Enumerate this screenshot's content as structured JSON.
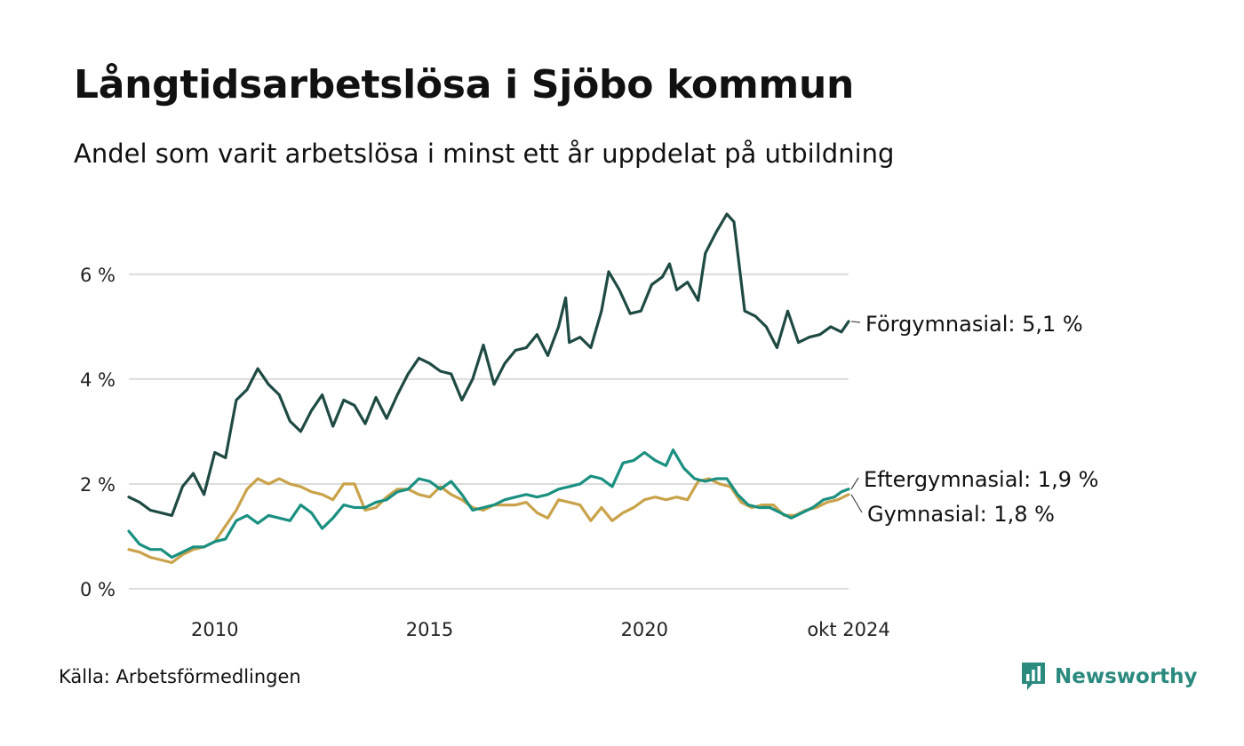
{
  "title": "Långtidsarbetslösa i Sjöbo kommun",
  "subtitle": "Andel som varit arbetslösa i minst ett år uppdelat på utbildning",
  "source": "Källa: Arbetsförmedlingen",
  "brand": {
    "name": "Newsworthy",
    "icon": "bar-chart-logo-icon",
    "color": "#2b8a7e"
  },
  "chart_data": {
    "type": "line",
    "title": "Långtidsarbetslösa i Sjöbo kommun",
    "x_range": [
      "2008-01",
      "2024-10"
    ],
    "ylim": [
      0,
      7.2
    ],
    "grid": "horizontal",
    "y_ticks": [
      {
        "value": 0,
        "label": "0 %"
      },
      {
        "value": 2,
        "label": "2 %"
      },
      {
        "value": 4,
        "label": "4 %"
      },
      {
        "value": 6,
        "label": "6 %"
      }
    ],
    "x_ticks": [
      {
        "date": "2010-01",
        "label": "2010"
      },
      {
        "date": "2015-01",
        "label": "2015"
      },
      {
        "date": "2020-01",
        "label": "2020"
      },
      {
        "date": "2024-10",
        "label": "okt 2024"
      }
    ],
    "series": [
      {
        "name": "Förgymnasial",
        "end_label": "Förgymnasial: 5,1 %",
        "color": "#1f4a44",
        "points": [
          [
            "2008-01",
            1.75
          ],
          [
            "2008-04",
            1.65
          ],
          [
            "2008-07",
            1.5
          ],
          [
            "2008-10",
            1.45
          ],
          [
            "2009-01",
            1.4
          ],
          [
            "2009-04",
            1.95
          ],
          [
            "2009-07",
            2.2
          ],
          [
            "2009-10",
            1.8
          ],
          [
            "2010-01",
            2.6
          ],
          [
            "2010-04",
            2.5
          ],
          [
            "2010-07",
            3.6
          ],
          [
            "2010-10",
            3.8
          ],
          [
            "2011-01",
            4.2
          ],
          [
            "2011-04",
            3.9
          ],
          [
            "2011-07",
            3.7
          ],
          [
            "2011-10",
            3.2
          ],
          [
            "2012-01",
            3.0
          ],
          [
            "2012-04",
            3.4
          ],
          [
            "2012-07",
            3.7
          ],
          [
            "2012-10",
            3.1
          ],
          [
            "2013-01",
            3.6
          ],
          [
            "2013-04",
            3.5
          ],
          [
            "2013-07",
            3.15
          ],
          [
            "2013-10",
            3.65
          ],
          [
            "2014-01",
            3.25
          ],
          [
            "2014-04",
            3.7
          ],
          [
            "2014-07",
            4.1
          ],
          [
            "2014-10",
            4.4
          ],
          [
            "2015-01",
            4.3
          ],
          [
            "2015-04",
            4.15
          ],
          [
            "2015-07",
            4.1
          ],
          [
            "2015-10",
            3.6
          ],
          [
            "2016-01",
            4.0
          ],
          [
            "2016-04",
            4.65
          ],
          [
            "2016-07",
            3.9
          ],
          [
            "2016-10",
            4.3
          ],
          [
            "2017-01",
            4.55
          ],
          [
            "2017-04",
            4.6
          ],
          [
            "2017-07",
            4.85
          ],
          [
            "2017-10",
            4.45
          ],
          [
            "2018-01",
            5.0
          ],
          [
            "2018-03",
            5.55
          ],
          [
            "2018-04",
            4.7
          ],
          [
            "2018-07",
            4.8
          ],
          [
            "2018-10",
            4.6
          ],
          [
            "2019-01",
            5.3
          ],
          [
            "2019-03",
            6.05
          ],
          [
            "2019-06",
            5.7
          ],
          [
            "2019-09",
            5.25
          ],
          [
            "2019-12",
            5.3
          ],
          [
            "2020-03",
            5.8
          ],
          [
            "2020-06",
            5.95
          ],
          [
            "2020-08",
            6.2
          ],
          [
            "2020-10",
            5.7
          ],
          [
            "2021-01",
            5.85
          ],
          [
            "2021-04",
            5.5
          ],
          [
            "2021-06",
            6.4
          ],
          [
            "2021-09",
            6.8
          ],
          [
            "2021-12",
            7.15
          ],
          [
            "2022-02",
            7.0
          ],
          [
            "2022-05",
            5.3
          ],
          [
            "2022-08",
            5.2
          ],
          [
            "2022-11",
            5.0
          ],
          [
            "2023-02",
            4.6
          ],
          [
            "2023-05",
            5.3
          ],
          [
            "2023-08",
            4.7
          ],
          [
            "2023-11",
            4.8
          ],
          [
            "2024-02",
            4.85
          ],
          [
            "2024-05",
            5.0
          ],
          [
            "2024-08",
            4.9
          ],
          [
            "2024-10",
            5.1
          ]
        ]
      },
      {
        "name": "Eftergymnasial",
        "end_label": "Eftergymnasial: 1,9 %",
        "color": "#1a9080",
        "points": [
          [
            "2008-01",
            1.1
          ],
          [
            "2008-04",
            0.85
          ],
          [
            "2008-07",
            0.75
          ],
          [
            "2008-10",
            0.75
          ],
          [
            "2009-01",
            0.6
          ],
          [
            "2009-04",
            0.7
          ],
          [
            "2009-07",
            0.8
          ],
          [
            "2009-10",
            0.8
          ],
          [
            "2010-01",
            0.9
          ],
          [
            "2010-04",
            0.95
          ],
          [
            "2010-07",
            1.3
          ],
          [
            "2010-10",
            1.4
          ],
          [
            "2011-01",
            1.25
          ],
          [
            "2011-04",
            1.4
          ],
          [
            "2011-07",
            1.35
          ],
          [
            "2011-10",
            1.3
          ],
          [
            "2012-01",
            1.6
          ],
          [
            "2012-04",
            1.45
          ],
          [
            "2012-07",
            1.15
          ],
          [
            "2012-10",
            1.35
          ],
          [
            "2013-01",
            1.6
          ],
          [
            "2013-04",
            1.55
          ],
          [
            "2013-07",
            1.55
          ],
          [
            "2013-10",
            1.65
          ],
          [
            "2014-01",
            1.7
          ],
          [
            "2014-04",
            1.85
          ],
          [
            "2014-07",
            1.9
          ],
          [
            "2014-10",
            2.1
          ],
          [
            "2015-01",
            2.05
          ],
          [
            "2015-04",
            1.9
          ],
          [
            "2015-07",
            2.05
          ],
          [
            "2015-10",
            1.8
          ],
          [
            "2016-01",
            1.5
          ],
          [
            "2016-04",
            1.55
          ],
          [
            "2016-07",
            1.6
          ],
          [
            "2016-10",
            1.7
          ],
          [
            "2017-01",
            1.75
          ],
          [
            "2017-04",
            1.8
          ],
          [
            "2017-07",
            1.75
          ],
          [
            "2017-10",
            1.8
          ],
          [
            "2018-01",
            1.9
          ],
          [
            "2018-04",
            1.95
          ],
          [
            "2018-07",
            2.0
          ],
          [
            "2018-10",
            2.15
          ],
          [
            "2019-01",
            2.1
          ],
          [
            "2019-04",
            1.95
          ],
          [
            "2019-07",
            2.4
          ],
          [
            "2019-10",
            2.45
          ],
          [
            "2020-01",
            2.6
          ],
          [
            "2020-04",
            2.45
          ],
          [
            "2020-07",
            2.35
          ],
          [
            "2020-09",
            2.65
          ],
          [
            "2020-12",
            2.3
          ],
          [
            "2021-03",
            2.1
          ],
          [
            "2021-06",
            2.05
          ],
          [
            "2021-09",
            2.1
          ],
          [
            "2021-12",
            2.1
          ],
          [
            "2022-03",
            1.8
          ],
          [
            "2022-06",
            1.6
          ],
          [
            "2022-09",
            1.55
          ],
          [
            "2022-12",
            1.55
          ],
          [
            "2023-03",
            1.45
          ],
          [
            "2023-06",
            1.35
          ],
          [
            "2023-09",
            1.45
          ],
          [
            "2023-12",
            1.55
          ],
          [
            "2024-03",
            1.7
          ],
          [
            "2024-06",
            1.75
          ],
          [
            "2024-08",
            1.85
          ],
          [
            "2024-10",
            1.9
          ]
        ]
      },
      {
        "name": "Gymnasial",
        "end_label": "Gymnasial: 1,8 %",
        "color": "#c9a24a",
        "points": [
          [
            "2008-01",
            0.75
          ],
          [
            "2008-04",
            0.7
          ],
          [
            "2008-07",
            0.6
          ],
          [
            "2008-10",
            0.55
          ],
          [
            "2009-01",
            0.5
          ],
          [
            "2009-04",
            0.65
          ],
          [
            "2009-07",
            0.75
          ],
          [
            "2009-10",
            0.8
          ],
          [
            "2010-01",
            0.9
          ],
          [
            "2010-04",
            1.2
          ],
          [
            "2010-07",
            1.5
          ],
          [
            "2010-10",
            1.9
          ],
          [
            "2011-01",
            2.1
          ],
          [
            "2011-04",
            2.0
          ],
          [
            "2011-07",
            2.1
          ],
          [
            "2011-10",
            2.0
          ],
          [
            "2012-01",
            1.95
          ],
          [
            "2012-04",
            1.85
          ],
          [
            "2012-07",
            1.8
          ],
          [
            "2012-10",
            1.7
          ],
          [
            "2013-01",
            2.0
          ],
          [
            "2013-04",
            2.0
          ],
          [
            "2013-07",
            1.5
          ],
          [
            "2013-10",
            1.55
          ],
          [
            "2014-01",
            1.75
          ],
          [
            "2014-04",
            1.9
          ],
          [
            "2014-07",
            1.9
          ],
          [
            "2014-10",
            1.8
          ],
          [
            "2015-01",
            1.75
          ],
          [
            "2015-04",
            1.95
          ],
          [
            "2015-07",
            1.8
          ],
          [
            "2015-10",
            1.7
          ],
          [
            "2016-01",
            1.55
          ],
          [
            "2016-04",
            1.5
          ],
          [
            "2016-07",
            1.6
          ],
          [
            "2016-10",
            1.6
          ],
          [
            "2017-01",
            1.6
          ],
          [
            "2017-04",
            1.65
          ],
          [
            "2017-07",
            1.45
          ],
          [
            "2017-10",
            1.35
          ],
          [
            "2018-01",
            1.7
          ],
          [
            "2018-04",
            1.65
          ],
          [
            "2018-07",
            1.6
          ],
          [
            "2018-10",
            1.3
          ],
          [
            "2019-01",
            1.55
          ],
          [
            "2019-04",
            1.3
          ],
          [
            "2019-07",
            1.45
          ],
          [
            "2019-10",
            1.55
          ],
          [
            "2020-01",
            1.7
          ],
          [
            "2020-04",
            1.75
          ],
          [
            "2020-07",
            1.7
          ],
          [
            "2020-10",
            1.75
          ],
          [
            "2021-01",
            1.7
          ],
          [
            "2021-04",
            2.05
          ],
          [
            "2021-07",
            2.1
          ],
          [
            "2021-10",
            2.0
          ],
          [
            "2022-01",
            1.95
          ],
          [
            "2022-04",
            1.65
          ],
          [
            "2022-07",
            1.55
          ],
          [
            "2022-10",
            1.6
          ],
          [
            "2023-01",
            1.6
          ],
          [
            "2023-04",
            1.4
          ],
          [
            "2023-07",
            1.4
          ],
          [
            "2023-10",
            1.5
          ],
          [
            "2024-01",
            1.55
          ],
          [
            "2024-04",
            1.65
          ],
          [
            "2024-07",
            1.7
          ],
          [
            "2024-10",
            1.8
          ]
        ]
      }
    ]
  }
}
